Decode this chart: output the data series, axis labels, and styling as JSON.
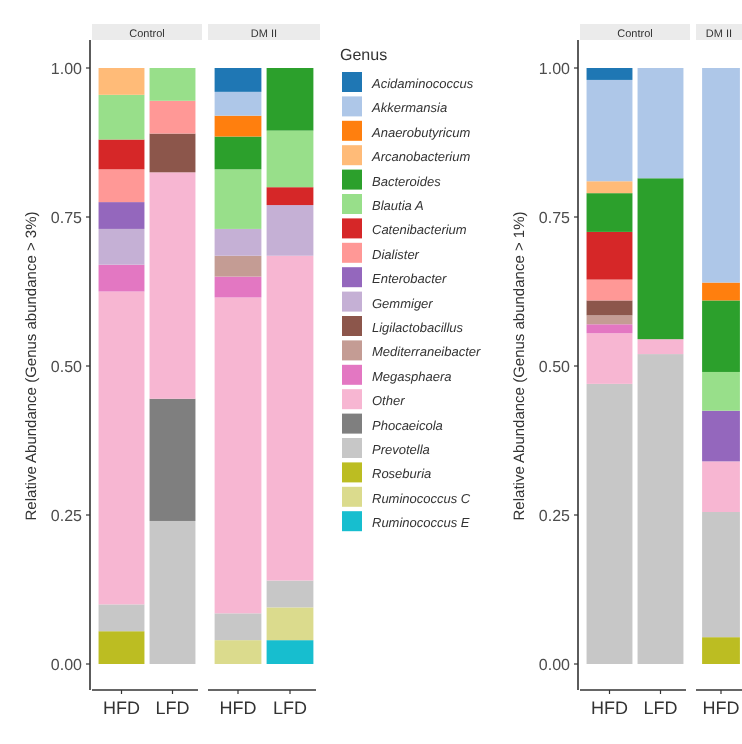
{
  "chart_data": [
    {
      "type": "bar",
      "stacked": true,
      "title": "Control",
      "ylabel": "Relative Abundance (Genus abundance > 3%)",
      "categories": [
        "HFD",
        "LFD"
      ],
      "ylim": [
        0,
        1
      ],
      "yticks": [
        {
          "value": 0,
          "label": "0.00"
        },
        {
          "value": 0.25,
          "label": "0.25"
        },
        {
          "value": 0.5,
          "label": "0.50"
        },
        {
          "value": 0.75,
          "label": "0.75"
        },
        {
          "value": 1,
          "label": "1.00"
        }
      ],
      "series": [
        {
          "color": "#bcbd22",
          "values": [
            0.055,
            null
          ]
        },
        {
          "color": "#c7c7c7",
          "values": [
            0.045,
            0.24
          ]
        },
        {
          "color": "#7f7f7f",
          "values": [
            null,
            0.205
          ]
        },
        {
          "color": "#f7b6d2",
          "values": [
            0.525,
            0.38
          ]
        },
        {
          "color": "#e377c2",
          "values": [
            0.045,
            null
          ]
        },
        {
          "color": "#8c564b",
          "values": [
            null,
            0.065
          ]
        },
        {
          "color": "#c5b0d5",
          "values": [
            0.06,
            null
          ]
        },
        {
          "color": "#9467bd",
          "values": [
            0.045,
            null
          ]
        },
        {
          "color": "#ff9896",
          "values": [
            0.055,
            0.055
          ]
        },
        {
          "color": "#d62728",
          "values": [
            0.05,
            null
          ]
        },
        {
          "color": "#98df8a",
          "values": [
            0.075,
            0.055
          ]
        },
        {
          "color": "#ffbb78",
          "values": [
            0.045,
            null
          ]
        }
      ]
    },
    {
      "type": "bar",
      "stacked": true,
      "title": "DM II",
      "tick_labels": "x",
      "legend": "right",
      "legend_title": "Genus",
      "categories": [
        "HFD",
        "LFD"
      ],
      "ylim": [
        0,
        1
      ],
      "series": [
        {
          "name": "Ruminococcus E",
          "color": "#17becf",
          "values": [
            null,
            0.04
          ]
        },
        {
          "name": "Ruminococcus C",
          "color": "#dbdb8d",
          "values": [
            0.04,
            0.055
          ]
        },
        {
          "name": "Roseburia",
          "color": "#bcbd22",
          "values": [
            null,
            null
          ]
        },
        {
          "name": "Prevotella",
          "color": "#c7c7c7",
          "values": [
            0.045,
            0.045
          ]
        },
        {
          "name": "Phocaeicola",
          "color": "#7f7f7f",
          "values": [
            null,
            null
          ]
        },
        {
          "name": "Other",
          "color": "#f7b6d2",
          "values": [
            0.53,
            0.545
          ]
        },
        {
          "name": "Megasphaera",
          "color": "#e377c2",
          "values": [
            0.035,
            null
          ]
        },
        {
          "name": "Mediterraneibacter",
          "color": "#c49c94",
          "values": [
            0.035,
            null
          ]
        },
        {
          "name": "Ligilactobacillus",
          "color": "#8c564b",
          "values": [
            null,
            null
          ]
        },
        {
          "name": "Gemmiger",
          "color": "#c5b0d5",
          "values": [
            0.045,
            0.085
          ]
        },
        {
          "name": "Enterobacter",
          "color": "#9467bd",
          "values": [
            null,
            null
          ]
        },
        {
          "name": "Dialister",
          "color": "#ff9896",
          "values": [
            null,
            null
          ]
        },
        {
          "name": "Catenibacterium",
          "color": "#d62728",
          "values": [
            null,
            0.03
          ]
        },
        {
          "name": "Blautia A",
          "color": "#98df8a",
          "values": [
            0.1,
            0.095
          ]
        },
        {
          "name": "Bacteroides",
          "color": "#2ca02c",
          "values": [
            0.055,
            0.105
          ]
        },
        {
          "name": "Arcanobacterium",
          "color": "#ffbb78",
          "values": [
            null,
            null
          ]
        },
        {
          "name": "Anaerobutyricum",
          "color": "#ff7f0e",
          "values": [
            0.035,
            null
          ]
        },
        {
          "name": "Akkermansia",
          "color": "#aec7e8",
          "values": [
            0.04,
            null
          ]
        },
        {
          "name": "Acidaminococcus",
          "color": "#1f77b4",
          "values": [
            0.04,
            null
          ]
        }
      ]
    },
    {
      "type": "bar",
      "stacked": true,
      "title": "Control",
      "ylabel": "Relative Abundance (Genus abundance > 1%)",
      "categories": [
        "HFD",
        "LFD"
      ],
      "ylim": [
        0,
        1
      ],
      "yticks": [
        {
          "value": 0,
          "label": "0.00"
        },
        {
          "value": 0.25,
          "label": "0.25"
        },
        {
          "value": 0.5,
          "label": "0.50"
        },
        {
          "value": 0.75,
          "label": "0.75"
        },
        {
          "value": 1,
          "label": "1.00"
        }
      ],
      "series": [
        {
          "color": "#c7c7c7",
          "values": [
            0.47,
            0.52
          ]
        },
        {
          "color": "#f7b6d2",
          "values": [
            0.085,
            0.025
          ]
        },
        {
          "color": "#e377c2",
          "values": [
            0.015,
            null
          ]
        },
        {
          "color": "#c49c94",
          "values": [
            0.015,
            null
          ]
        },
        {
          "color": "#8c564b",
          "values": [
            0.025,
            null
          ]
        },
        {
          "color": "#ff9896",
          "values": [
            0.035,
            null
          ]
        },
        {
          "color": "#d62728",
          "values": [
            0.08,
            null
          ]
        },
        {
          "color": "#2ca02c",
          "values": [
            0.065,
            0.27
          ]
        },
        {
          "color": "#ffbb78",
          "values": [
            0.02,
            null
          ]
        },
        {
          "color": "#aec7e8",
          "values": [
            0.17,
            0.185
          ]
        },
        {
          "color": "#1f77b4",
          "values": [
            0.02,
            null
          ]
        }
      ]
    },
    {
      "type": "bar",
      "stacked": true,
      "title": "DM II",
      "tick_labels": "x",
      "categories": [
        "HFD"
      ],
      "ylim": [
        0,
        1
      ],
      "series": [
        {
          "color": "#bcbd22",
          "values": [
            0.045
          ]
        },
        {
          "color": "#c7c7c7",
          "values": [
            0.21
          ]
        },
        {
          "color": "#f7b6d2",
          "values": [
            0.085
          ]
        },
        {
          "color": "#9467bd",
          "values": [
            0.085
          ]
        },
        {
          "color": "#98df8a",
          "values": [
            0.065
          ]
        },
        {
          "color": "#2ca02c",
          "values": [
            0.12
          ]
        },
        {
          "color": "#ff7f0e",
          "values": [
            0.03
          ]
        },
        {
          "color": "#aec7e8",
          "values": [
            0.36
          ]
        }
      ]
    }
  ]
}
